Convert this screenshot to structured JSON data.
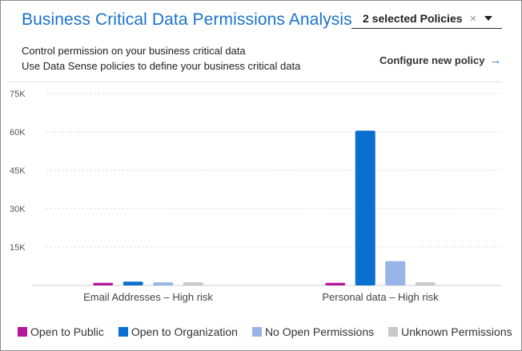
{
  "header": {
    "title": "Business Critical Data Permissions Analysis",
    "policy_select": {
      "label": "2 selected Policies",
      "clear_icon": "×",
      "caret_icon": "chevron-down-icon"
    }
  },
  "description": {
    "line1": "Control permission on your business critical data",
    "line2": "Use Data Sense policies to define your business critical data"
  },
  "configure_link": {
    "label": "Configure new policy",
    "arrow_icon": "→"
  },
  "colors": {
    "accent": "#1a73c8",
    "open_to_public": "#b5179e",
    "open_to_organization": "#0b6fcf",
    "no_open_permissions": "#99b4e6",
    "unknown_permissions": "#c8c8c8"
  },
  "chart_data": {
    "type": "bar",
    "categories": [
      "Email Addresses – High risk",
      "Personal data – High risk"
    ],
    "series": [
      {
        "name": "Open to Public",
        "values": [
          1000,
          1000
        ]
      },
      {
        "name": "Open to Organization",
        "values": [
          1500,
          60500
        ]
      },
      {
        "name": "No Open Permissions",
        "values": [
          1200,
          9500
        ]
      },
      {
        "name": "Unknown Permissions",
        "values": [
          1200,
          1200
        ]
      }
    ],
    "yticks": [
      "15K",
      "30K",
      "45K",
      "60K",
      "75K"
    ],
    "ytick_values": [
      15000,
      30000,
      45000,
      60000,
      75000
    ],
    "ylim": [
      0,
      75000
    ],
    "grid": true,
    "legend_position": "bottom"
  }
}
